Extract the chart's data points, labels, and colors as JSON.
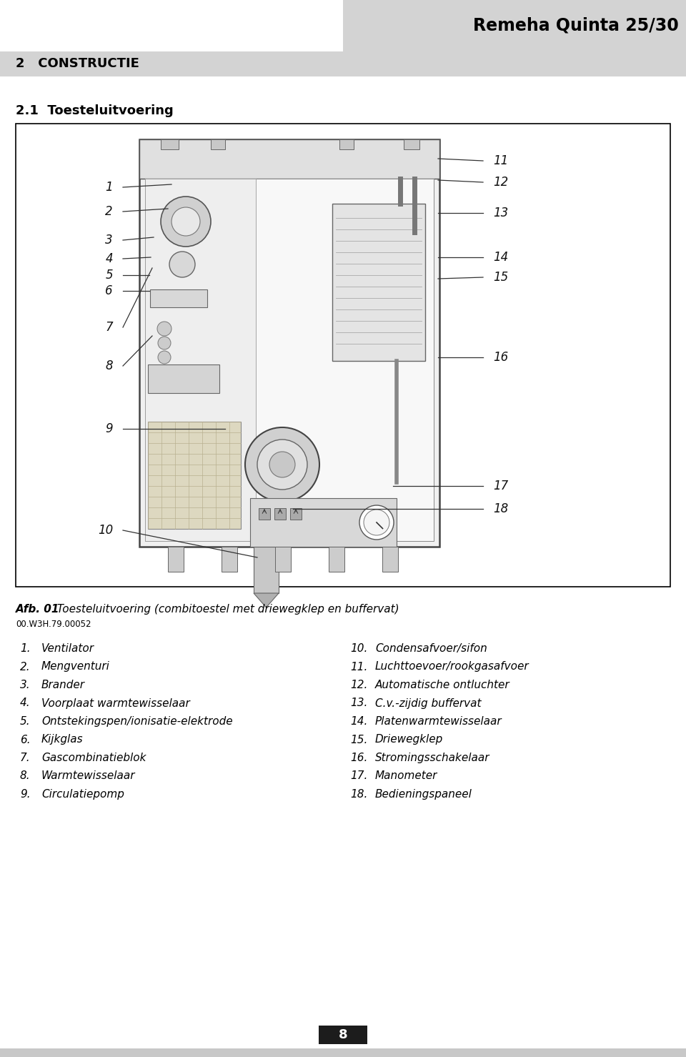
{
  "page_bg": "#ffffff",
  "header_bg": "#d3d3d3",
  "header_text": "Remeha Quinta 25/30",
  "section_bar_bg": "#d3d3d3",
  "section_text": "2   CONSTRUCTIE",
  "subsection_text": "2.1  Toesteluitvoering",
  "caption_bold": "Afb. 01",
  "caption_rest": "  Toesteluitvoering (combitoestel met driewegklep en buffervat)",
  "caption_code": "00.W3H.79.00052",
  "left_items": [
    [
      "1.",
      "Ventilator"
    ],
    [
      "2.",
      "Mengventuri"
    ],
    [
      "3.",
      "Brander"
    ],
    [
      "4.",
      "Voorplaat warmtewisselaar"
    ],
    [
      "5.",
      "Ontstekingspen/ionisatie-elektrode"
    ],
    [
      "6.",
      "Kijkglas"
    ],
    [
      "7.",
      "Gascombinatieblok"
    ],
    [
      "8.",
      "Warmtewisselaar"
    ],
    [
      "9.",
      "Circulatiepomp"
    ]
  ],
  "right_items": [
    [
      "10.",
      "Condensafvoer/sifon"
    ],
    [
      "11.",
      "Luchttoevoer/rookgasafvoer"
    ],
    [
      "12.",
      "Automatische ontluchter"
    ],
    [
      "13.",
      "C.v.-zijdig buffervat"
    ],
    [
      "14.",
      "Platenwarmtewisselaar"
    ],
    [
      "15.",
      "Driewegklep"
    ],
    [
      "16.",
      "Stromingsschakelaar"
    ],
    [
      "17.",
      "Manometer"
    ],
    [
      "18.",
      "Bedieningspaneel"
    ]
  ],
  "page_number": "8",
  "text_color": "#000000",
  "gray_line": "#888888",
  "dark_gray": "#555555",
  "light_gray": "#cccccc",
  "boiler_fill": "#e8e8e8",
  "boiler_inner": "#f2f2f2"
}
